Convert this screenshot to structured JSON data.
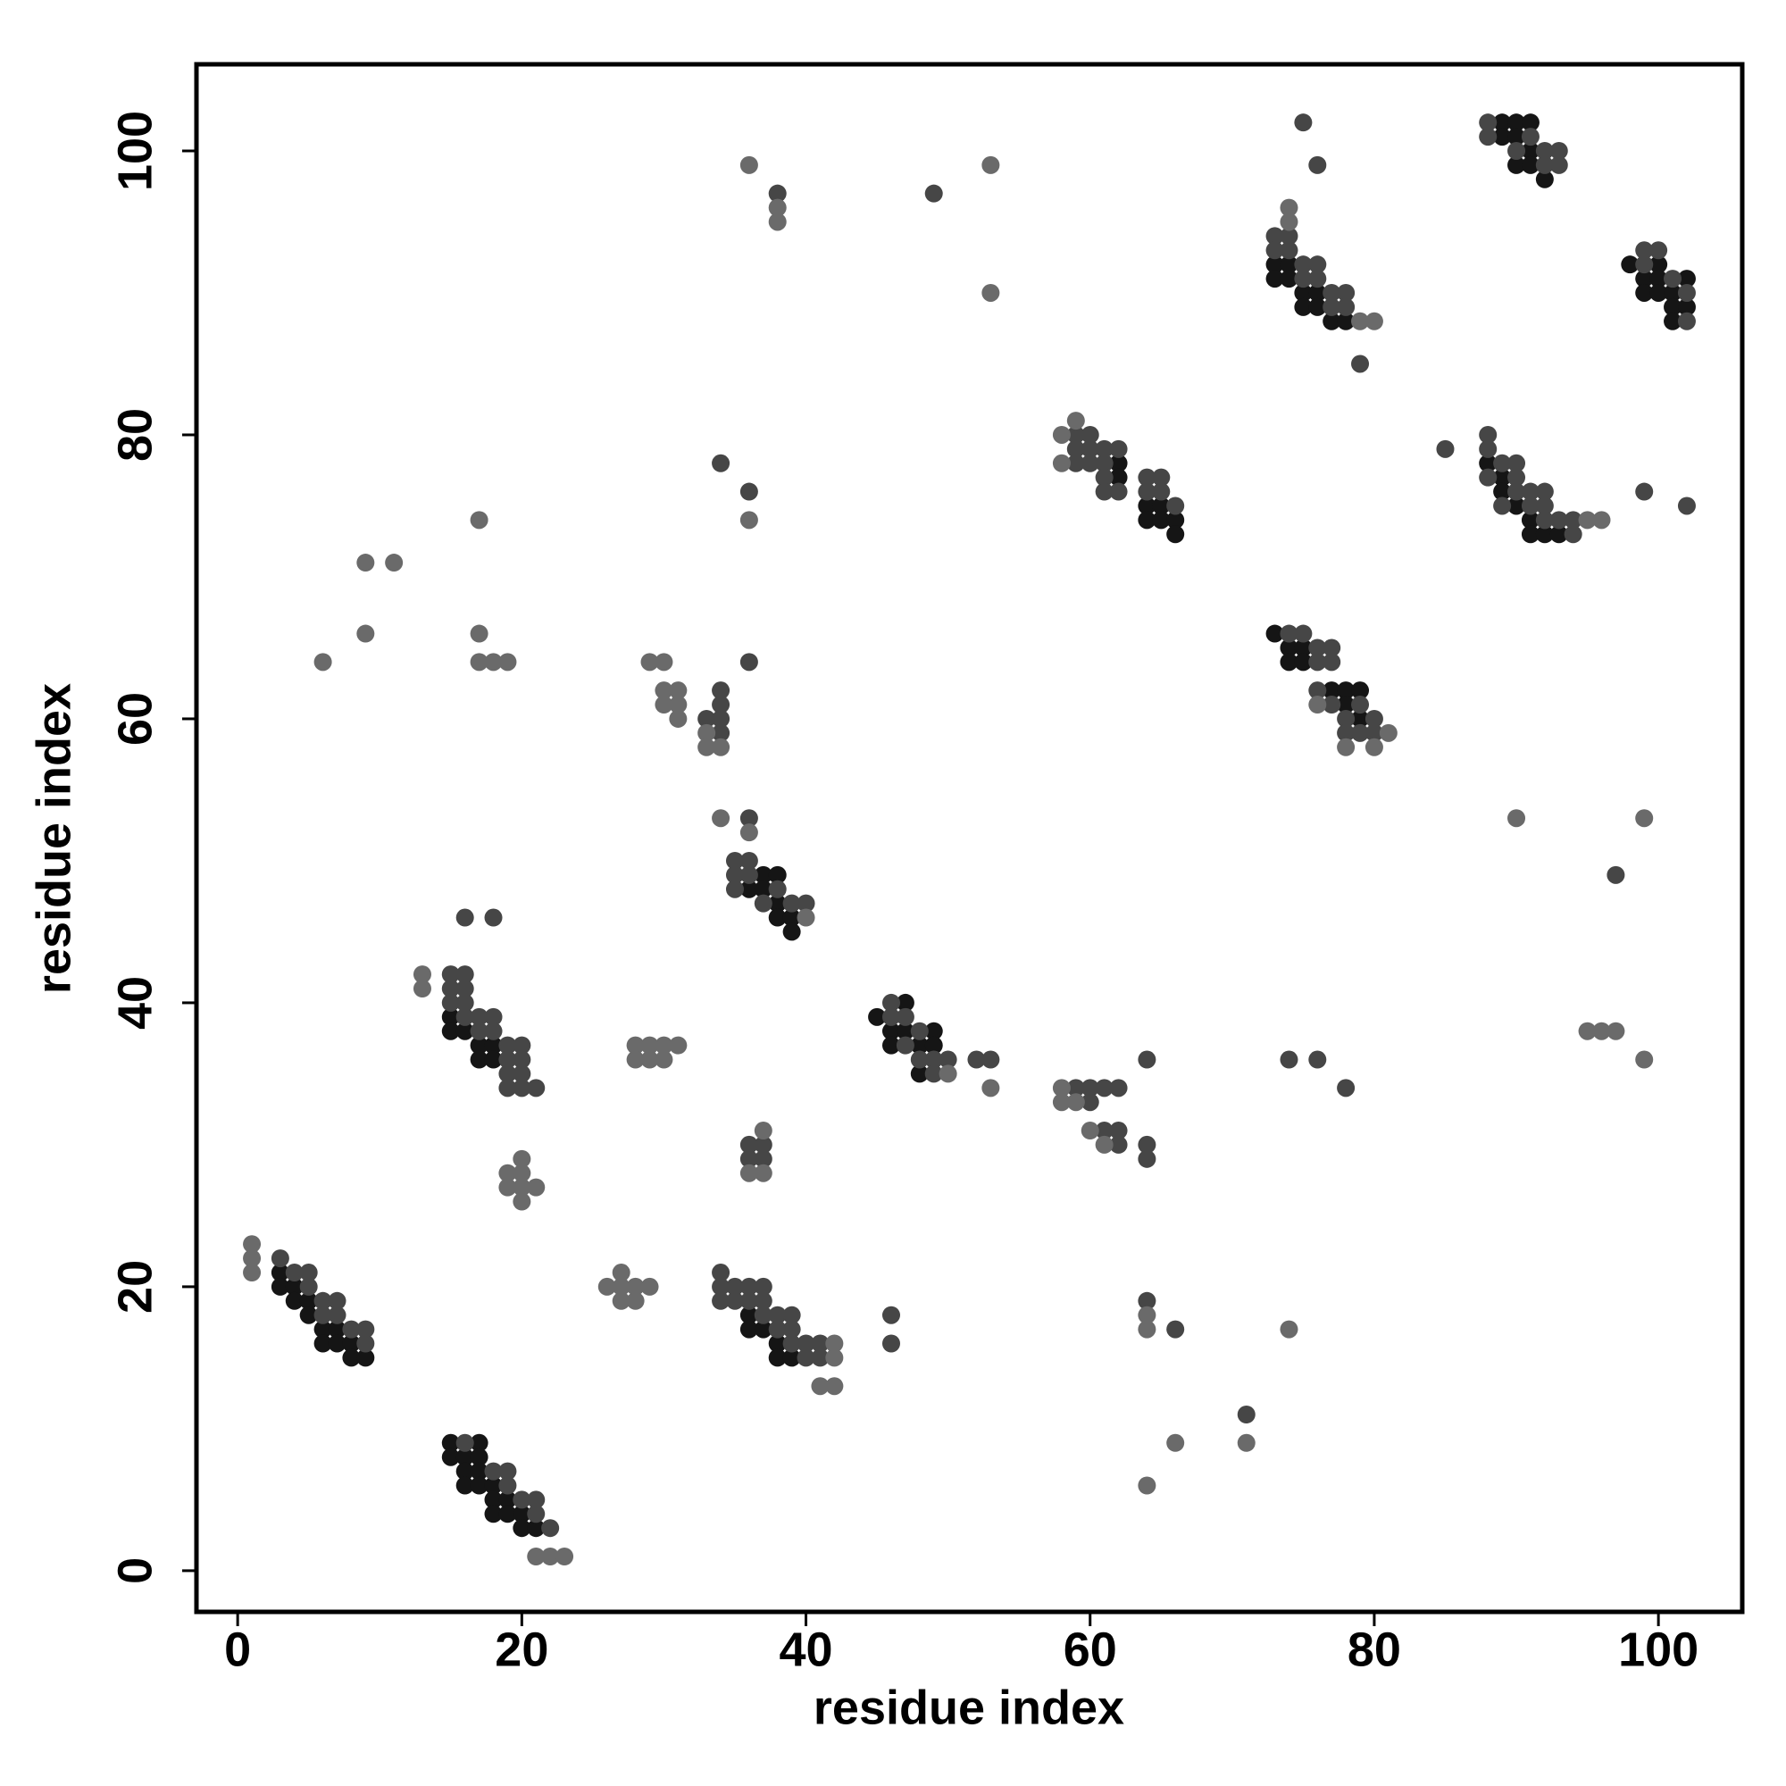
{
  "chart_data": {
    "type": "scatter",
    "xlabel": "residue index",
    "ylabel": "residue index",
    "xlim": [
      -2.9,
      105.9
    ],
    "ylim": [
      -2.9,
      106.1
    ],
    "xticks": [
      0,
      20,
      40,
      60,
      80,
      100
    ],
    "yticks": [
      0,
      20,
      40,
      60,
      80,
      100
    ],
    "series": [
      {
        "color": "#151515",
        "x": [
          3,
          3,
          4,
          4,
          5,
          5,
          6,
          6,
          7,
          7,
          8,
          8,
          9,
          15,
          15,
          16,
          16,
          16,
          17,
          17,
          17,
          17,
          18,
          18,
          18,
          19,
          19,
          20,
          20,
          21,
          15,
          15,
          16,
          17,
          17,
          18,
          18,
          36,
          37,
          37,
          38,
          38,
          38,
          39,
          39,
          36,
          36,
          37,
          38,
          38,
          39,
          45,
          46,
          46,
          47,
          47,
          48,
          48,
          49,
          49,
          62,
          62,
          64,
          64,
          65,
          65,
          66,
          66,
          73,
          74,
          74,
          75,
          75,
          77,
          78,
          78,
          79,
          79,
          73,
          73,
          74,
          74,
          75,
          75,
          76,
          76,
          77,
          78,
          88,
          89,
          89,
          90,
          91,
          91,
          92,
          93,
          89,
          89,
          90,
          90,
          91,
          91,
          90,
          91,
          92,
          98,
          99,
          99,
          100,
          100,
          100,
          101,
          101,
          102,
          102,
          101
        ],
        "values": [
          21,
          20,
          20,
          19,
          19,
          18,
          17,
          16,
          17,
          16,
          16,
          15,
          15,
          9,
          8,
          8,
          7,
          6,
          9,
          8,
          7,
          6,
          6,
          5,
          4,
          5,
          4,
          4,
          3,
          3,
          39,
          38,
          38,
          37,
          36,
          37,
          36,
          48,
          49,
          48,
          49,
          47,
          46,
          46,
          45,
          18,
          17,
          17,
          16,
          15,
          15,
          39,
          38,
          37,
          40,
          38,
          37,
          35,
          38,
          37,
          78,
          77,
          75,
          74,
          75,
          74,
          74,
          73,
          66,
          65,
          64,
          65,
          64,
          62,
          62,
          61,
          62,
          60,
          92,
          91,
          92,
          91,
          90,
          89,
          90,
          89,
          88,
          88,
          78,
          77,
          76,
          75,
          74,
          73,
          73,
          73,
          102,
          101,
          102,
          101,
          102,
          100,
          99,
          99,
          98,
          92,
          91,
          90,
          92,
          91,
          90,
          90,
          89,
          91,
          89,
          88
        ]
      },
      {
        "color": "#464646",
        "x": [
          3,
          4,
          5,
          5,
          6,
          6,
          7,
          7,
          8,
          9,
          9,
          16,
          18,
          19,
          19,
          20,
          21,
          21,
          22,
          15,
          15,
          15,
          16,
          16,
          16,
          16,
          17,
          17,
          18,
          18,
          19,
          19,
          19,
          19,
          20,
          20,
          20,
          20,
          21,
          16,
          18,
          34,
          36,
          36,
          38,
          33,
          34,
          34,
          34,
          34,
          36,
          35,
          35,
          35,
          36,
          36,
          37,
          38,
          39,
          40,
          36,
          36,
          37,
          37,
          34,
          34,
          34,
          35,
          35,
          36,
          36,
          37,
          37,
          37,
          38,
          38,
          39,
          39,
          39,
          40,
          40,
          41,
          41,
          46,
          46,
          46,
          46,
          47,
          47,
          48,
          48,
          49,
          49,
          50,
          52,
          53,
          49,
          59,
          59,
          59,
          60,
          60,
          60,
          61,
          61,
          61,
          61,
          62,
          62,
          64,
          64,
          65,
          65,
          66,
          59,
          60,
          60,
          61,
          61,
          62,
          62,
          62,
          64,
          64,
          64,
          64,
          66,
          71,
          74,
          76,
          78,
          74,
          75,
          76,
          76,
          77,
          77,
          76,
          77,
          78,
          78,
          79,
          79,
          80,
          80,
          73,
          73,
          74,
          74,
          75,
          75,
          76,
          76,
          77,
          77,
          78,
          78,
          79,
          75,
          76,
          85,
          88,
          88,
          88,
          89,
          89,
          90,
          90,
          90,
          91,
          91,
          92,
          92,
          92,
          93,
          94,
          94,
          99,
          102,
          88,
          88,
          90,
          91,
          92,
          92,
          93,
          93,
          99,
          99,
          100,
          101,
          102,
          102,
          97
        ],
        "values": [
          22,
          21,
          21,
          20,
          19,
          18,
          19,
          18,
          17,
          17,
          16,
          9,
          7,
          7,
          6,
          5,
          5,
          4,
          3,
          42,
          41,
          40,
          42,
          41,
          40,
          39,
          39,
          38,
          39,
          38,
          37,
          36,
          35,
          34,
          37,
          36,
          35,
          34,
          34,
          46,
          46,
          78,
          76,
          64,
          97,
          60,
          62,
          61,
          60,
          59,
          53,
          50,
          49,
          48,
          50,
          49,
          47,
          48,
          47,
          47,
          30,
          29,
          30,
          29,
          21,
          20,
          19,
          20,
          19,
          20,
          19,
          20,
          19,
          18,
          18,
          17,
          18,
          17,
          16,
          16,
          15,
          16,
          15,
          18,
          16,
          40,
          39,
          39,
          37,
          38,
          36,
          36,
          35,
          36,
          36,
          36,
          97,
          80,
          79,
          78,
          80,
          79,
          78,
          79,
          78,
          77,
          76,
          79,
          76,
          77,
          76,
          77,
          76,
          75,
          34,
          34,
          33,
          34,
          31,
          34,
          31,
          30,
          36,
          30,
          29,
          19,
          17,
          11,
          36,
          36,
          34,
          66,
          66,
          65,
          64,
          65,
          64,
          62,
          61,
          60,
          59,
          61,
          59,
          60,
          59,
          94,
          93,
          94,
          93,
          92,
          91,
          92,
          91,
          90,
          89,
          90,
          89,
          85,
          102,
          99,
          79,
          80,
          79,
          77,
          78,
          75,
          78,
          77,
          76,
          76,
          75,
          76,
          75,
          74,
          74,
          74,
          73,
          76,
          75,
          102,
          101,
          100,
          101,
          100,
          99,
          100,
          99,
          93,
          92,
          93,
          91,
          90,
          88,
          49
        ]
      },
      {
        "color": "#6a6a6a",
        "x": [
          1,
          1,
          1,
          21,
          22,
          23,
          13,
          13,
          19,
          19,
          20,
          20,
          20,
          20,
          21,
          26,
          27,
          27,
          27,
          28,
          28,
          29,
          28,
          28,
          29,
          29,
          30,
          30,
          31,
          29,
          30,
          30,
          30,
          31,
          31,
          31,
          33,
          33,
          34,
          36,
          36,
          38,
          38,
          53,
          53,
          58,
          58,
          59,
          58,
          58,
          59,
          60,
          61,
          64,
          64,
          66,
          64,
          71,
          74,
          74,
          74,
          79,
          80,
          80,
          81,
          78,
          76,
          95,
          96,
          90,
          99,
          99,
          95,
          96,
          97,
          41,
          42,
          42,
          42,
          6,
          17,
          18,
          19,
          17,
          17,
          9,
          9,
          11,
          34,
          36,
          40,
          50,
          53,
          37,
          36,
          37
        ],
        "values": [
          23,
          22,
          21,
          1,
          1,
          1,
          42,
          41,
          28,
          27,
          29,
          28,
          27,
          26,
          27,
          20,
          21,
          20,
          19,
          20,
          19,
          20,
          37,
          36,
          37,
          36,
          37,
          36,
          37,
          64,
          64,
          62,
          61,
          62,
          61,
          60,
          59,
          58,
          58,
          74,
          99,
          96,
          95,
          99,
          90,
          80,
          78,
          81,
          34,
          33,
          33,
          31,
          30,
          17,
          18,
          9,
          6,
          9,
          17,
          96,
          95,
          88,
          88,
          58,
          59,
          58,
          61,
          74,
          74,
          53,
          53,
          36,
          38,
          38,
          38,
          13,
          13,
          16,
          15,
          64,
          64,
          64,
          64,
          66,
          74,
          66,
          71,
          71,
          53,
          52,
          46,
          35,
          34,
          31,
          28,
          28
        ]
      }
    ]
  }
}
